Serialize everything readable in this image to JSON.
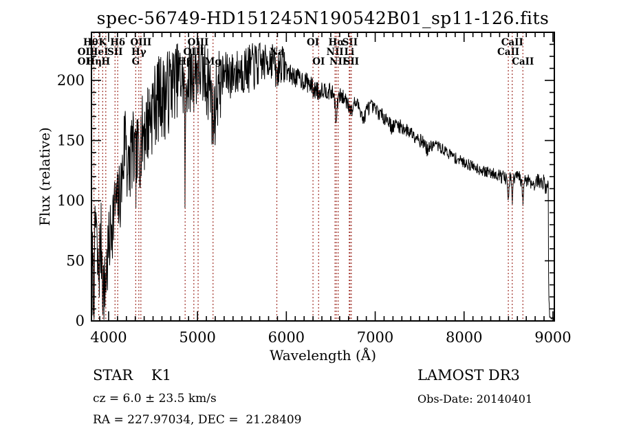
{
  "title": "spec-56749-HD151245N190542B01_sp11-126.fits",
  "colors": {
    "spectrum_line": "#000000",
    "spectral_line_marker": "#a03028",
    "axis": "#000000",
    "background": "#ffffff"
  },
  "footer": {
    "classification": "STAR    K1",
    "cz": "cz = 6.0 ± 23.5 km/s",
    "radec": "RA = 227.97034, DEC =  21.28409",
    "survey": "LAMOST DR3",
    "obs_date": "Obs-Date: 20140401"
  },
  "chart_data": {
    "type": "line",
    "title": "spec-56749-HD151245N190542B01_sp11-126.fits",
    "xlabel": "Wavelength (Å)",
    "ylabel": "Flux (relative)",
    "xlim": [
      3807,
      9016
    ],
    "ylim": [
      0,
      240
    ],
    "xticks": [
      4000,
      5000,
      6000,
      7000,
      8000,
      9000
    ],
    "yticks": [
      0,
      50,
      100,
      150,
      200
    ],
    "x_minor_step": 100,
    "y_minor_step": 10,
    "grid": false,
    "legend": "none",
    "series_name": "spectrum",
    "spectral_lines": [
      {
        "wavelength": 3726,
        "label": "OII",
        "row": 2
      },
      {
        "wavelength": 3729,
        "label": "OII",
        "row": 3
      },
      {
        "wavelength": 3798,
        "label": "Hθ",
        "row": 1
      },
      {
        "wavelength": 3835,
        "label": "Hη",
        "row": 3
      },
      {
        "wavelength": 3889,
        "label": "HeI",
        "row": 2
      },
      {
        "wavelength": 3933,
        "label": "K",
        "row": 1
      },
      {
        "wavelength": 3968,
        "label": "H",
        "row": 3
      },
      {
        "wavelength": 4072,
        "label": "SII",
        "row": 2
      },
      {
        "wavelength": 4102,
        "label": "Hδ",
        "row": 1
      },
      {
        "wavelength": 4305,
        "label": "G",
        "row": 3
      },
      {
        "wavelength": 4340,
        "label": "Hγ",
        "row": 2
      },
      {
        "wavelength": 4363,
        "label": "OIII",
        "row": 1
      },
      {
        "wavelength": 4861,
        "label": "Hβ",
        "row": 3
      },
      {
        "wavelength": 4959,
        "label": "OIII",
        "row": 2
      },
      {
        "wavelength": 5007,
        "label": "OIII",
        "row": 1
      },
      {
        "wavelength": 5175,
        "label": "Mg",
        "row": 3
      },
      {
        "wavelength": 5893,
        "label": "Na",
        "row": 2
      },
      {
        "wavelength": 6300,
        "label": "OI",
        "row": 1
      },
      {
        "wavelength": 6363,
        "label": "OI",
        "row": 3
      },
      {
        "wavelength": 6548,
        "label": "NII",
        "row": 2
      },
      {
        "wavelength": 6563,
        "label": "Hα",
        "row": 1
      },
      {
        "wavelength": 6583,
        "label": "NII",
        "row": 3
      },
      {
        "wavelength": 6708,
        "label": "Li",
        "row": 2
      },
      {
        "wavelength": 6716,
        "label": "SII",
        "row": 1
      },
      {
        "wavelength": 6731,
        "label": "SII",
        "row": 3
      },
      {
        "wavelength": 8498,
        "label": "CaII",
        "row": 2
      },
      {
        "wavelength": 8542,
        "label": "CaII",
        "row": 1
      },
      {
        "wavelength": 8662,
        "label": "CaII",
        "row": 3
      }
    ],
    "envelope": [
      [
        3807,
        2
      ],
      [
        3812,
        28
      ],
      [
        3818,
        50
      ],
      [
        3826,
        38
      ],
      [
        3833,
        18
      ],
      [
        3841,
        52
      ],
      [
        3850,
        75
      ],
      [
        3860,
        88
      ],
      [
        3871,
        50
      ],
      [
        3882,
        38
      ],
      [
        3893,
        52
      ],
      [
        3904,
        62
      ],
      [
        3916,
        70
      ],
      [
        3925,
        60
      ],
      [
        3933,
        40
      ],
      [
        3943,
        30
      ],
      [
        3953,
        26
      ],
      [
        3962,
        34
      ],
      [
        3972,
        40
      ],
      [
        3984,
        52
      ],
      [
        3998,
        62
      ],
      [
        4015,
        72
      ],
      [
        4035,
        85
      ],
      [
        4060,
        95
      ],
      [
        4085,
        98
      ],
      [
        4110,
        102
      ],
      [
        4135,
        112
      ],
      [
        4160,
        128
      ],
      [
        4180,
        155
      ],
      [
        4192,
        168
      ],
      [
        4205,
        140
      ],
      [
        4218,
        120
      ],
      [
        4232,
        132
      ],
      [
        4248,
        142
      ],
      [
        4265,
        148
      ],
      [
        4282,
        142
      ],
      [
        4300,
        130
      ],
      [
        4318,
        138
      ],
      [
        4338,
        148
      ],
      [
        4358,
        153
      ],
      [
        4380,
        158
      ],
      [
        4405,
        163
      ],
      [
        4432,
        168
      ],
      [
        4460,
        173
      ],
      [
        4490,
        180
      ],
      [
        4520,
        185
      ],
      [
        4555,
        190
      ],
      [
        4590,
        193
      ],
      [
        4625,
        190
      ],
      [
        4660,
        195
      ],
      [
        4700,
        200
      ],
      [
        4740,
        204
      ],
      [
        4780,
        206
      ],
      [
        4820,
        204
      ],
      [
        4852,
        198
      ],
      [
        4861,
        95
      ],
      [
        4870,
        200
      ],
      [
        4905,
        208
      ],
      [
        4945,
        207
      ],
      [
        4985,
        211
      ],
      [
        5025,
        212
      ],
      [
        5065,
        209
      ],
      [
        5105,
        204
      ],
      [
        5145,
        198
      ],
      [
        5168,
        176
      ],
      [
        5188,
        172
      ],
      [
        5212,
        192
      ],
      [
        5255,
        203
      ],
      [
        5300,
        206
      ],
      [
        5350,
        208
      ],
      [
        5400,
        207
      ],
      [
        5450,
        209
      ],
      [
        5505,
        211
      ],
      [
        5560,
        212
      ],
      [
        5620,
        214
      ],
      [
        5680,
        215
      ],
      [
        5740,
        216
      ],
      [
        5800,
        218
      ],
      [
        5855,
        220
      ],
      [
        5878,
        210
      ],
      [
        5892,
        201
      ],
      [
        5908,
        212
      ],
      [
        5945,
        217
      ],
      [
        5980,
        214
      ],
      [
        6015,
        208
      ],
      [
        6070,
        205
      ],
      [
        6130,
        203
      ],
      [
        6190,
        201
      ],
      [
        6250,
        199
      ],
      [
        6295,
        195
      ],
      [
        6315,
        192
      ],
      [
        6345,
        195
      ],
      [
        6365,
        189
      ],
      [
        6392,
        194
      ],
      [
        6445,
        193
      ],
      [
        6500,
        191
      ],
      [
        6535,
        189
      ],
      [
        6550,
        180
      ],
      [
        6563,
        161
      ],
      [
        6574,
        183
      ],
      [
        6605,
        188
      ],
      [
        6645,
        186
      ],
      [
        6685,
        184
      ],
      [
        6710,
        179
      ],
      [
        6724,
        176
      ],
      [
        6738,
        175
      ],
      [
        6765,
        182
      ],
      [
        6805,
        180
      ],
      [
        6845,
        175
      ],
      [
        6864,
        166
      ],
      [
        6882,
        171
      ],
      [
        6912,
        178
      ],
      [
        6955,
        179
      ],
      [
        7005,
        176
      ],
      [
        7055,
        173
      ],
      [
        7105,
        170
      ],
      [
        7155,
        167
      ],
      [
        7188,
        161
      ],
      [
        7225,
        164
      ],
      [
        7275,
        163
      ],
      [
        7330,
        160
      ],
      [
        7390,
        158
      ],
      [
        7450,
        155
      ],
      [
        7510,
        151
      ],
      [
        7565,
        147
      ],
      [
        7592,
        142
      ],
      [
        7625,
        146
      ],
      [
        7685,
        147
      ],
      [
        7745,
        144
      ],
      [
        7805,
        141
      ],
      [
        7865,
        138
      ],
      [
        7925,
        135
      ],
      [
        7985,
        133
      ],
      [
        8045,
        131
      ],
      [
        8105,
        129
      ],
      [
        8165,
        127
      ],
      [
        8225,
        125
      ],
      [
        8285,
        124
      ],
      [
        8345,
        123
      ],
      [
        8405,
        122
      ],
      [
        8455,
        120
      ],
      [
        8482,
        117
      ],
      [
        8498,
        99
      ],
      [
        8514,
        119
      ],
      [
        8532,
        117
      ],
      [
        8542,
        98
      ],
      [
        8558,
        119
      ],
      [
        8592,
        121
      ],
      [
        8625,
        120
      ],
      [
        8652,
        113
      ],
      [
        8662,
        99
      ],
      [
        8678,
        117
      ],
      [
        8712,
        119
      ],
      [
        8745,
        117
      ],
      [
        8775,
        114
      ],
      [
        8805,
        116
      ],
      [
        8835,
        118
      ],
      [
        8865,
        115
      ],
      [
        8895,
        117
      ],
      [
        8918,
        111
      ],
      [
        8938,
        117
      ],
      [
        8949,
        108
      ],
      [
        8952,
        4
      ],
      [
        8957,
        26
      ],
      [
        8961,
        3
      ],
      [
        9016,
        2
      ]
    ],
    "noise_regions": [
      [
        3807,
        4000,
        30
      ],
      [
        4000,
        4160,
        26
      ],
      [
        4160,
        4430,
        30
      ],
      [
        4430,
        4700,
        30
      ],
      [
        4700,
        5260,
        26
      ],
      [
        5260,
        5710,
        17
      ],
      [
        5710,
        5995,
        13
      ],
      [
        5995,
        6360,
        7
      ],
      [
        6360,
        6705,
        6
      ],
      [
        6705,
        7110,
        5
      ],
      [
        7110,
        7610,
        5
      ],
      [
        7610,
        8410,
        4
      ],
      [
        8410,
        8949,
        5
      ],
      [
        8949,
        9016,
        1
      ]
    ],
    "sample_step": 4,
    "seed": 7
  }
}
